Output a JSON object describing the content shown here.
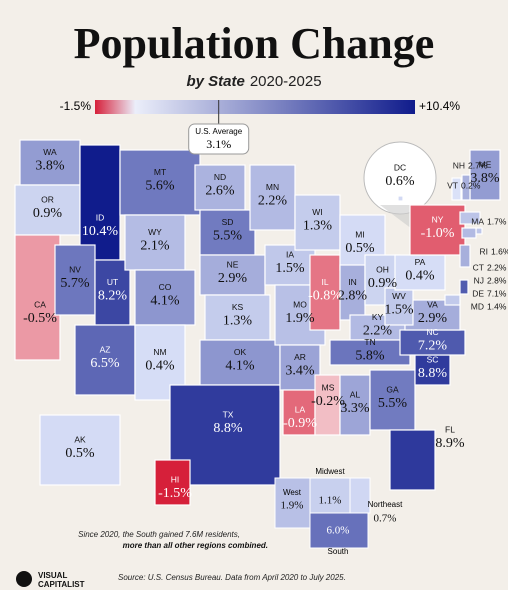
{
  "header": {
    "title": "Population Change",
    "subtitle": "by State",
    "period": "2020-2025"
  },
  "legend": {
    "min": {
      "value": -1.5,
      "label": "-1.5%"
    },
    "max": {
      "value": 10.4,
      "label": "+10.4%"
    }
  },
  "us_average": {
    "title": "U.S. Average",
    "value": 3.1,
    "label": "3.1%"
  },
  "states": [
    {
      "code": "WA",
      "value": 3.8,
      "label": "3.8%"
    },
    {
      "code": "OR",
      "value": 0.9,
      "label": "0.9%"
    },
    {
      "code": "CA",
      "value": -0.5,
      "label": "-0.5%"
    },
    {
      "code": "ID",
      "value": 10.4,
      "label": "10.4%"
    },
    {
      "code": "NV",
      "value": 5.7,
      "label": "5.7%"
    },
    {
      "code": "UT",
      "value": 8.2,
      "label": "8.2%"
    },
    {
      "code": "AZ",
      "value": 6.5,
      "label": "6.5%"
    },
    {
      "code": "MT",
      "value": 5.6,
      "label": "5.6%"
    },
    {
      "code": "WY",
      "value": 2.1,
      "label": "2.1%"
    },
    {
      "code": "CO",
      "value": 4.1,
      "label": "4.1%"
    },
    {
      "code": "NM",
      "value": 0.4,
      "label": "0.4%"
    },
    {
      "code": "ND",
      "value": 2.6,
      "label": "2.6%"
    },
    {
      "code": "SD",
      "value": 5.5,
      "label": "5.5%"
    },
    {
      "code": "NE",
      "value": 2.9,
      "label": "2.9%"
    },
    {
      "code": "KS",
      "value": 1.3,
      "label": "1.3%"
    },
    {
      "code": "OK",
      "value": 4.1,
      "label": "4.1%"
    },
    {
      "code": "TX",
      "value": 8.8,
      "label": "8.8%"
    },
    {
      "code": "MN",
      "value": 2.2,
      "label": "2.2%"
    },
    {
      "code": "IA",
      "value": 1.5,
      "label": "1.5%"
    },
    {
      "code": "MO",
      "value": 1.9,
      "label": "1.9%"
    },
    {
      "code": "AR",
      "value": 3.4,
      "label": "3.4%"
    },
    {
      "code": "LA",
      "value": -0.9,
      "label": "-0.9%"
    },
    {
      "code": "WI",
      "value": 1.3,
      "label": "1.3%"
    },
    {
      "code": "IL",
      "value": -0.8,
      "label": "-0.8%"
    },
    {
      "code": "MI",
      "value": 0.5,
      "label": "0.5%"
    },
    {
      "code": "IN",
      "value": 2.8,
      "label": "2.8%"
    },
    {
      "code": "OH",
      "value": 0.9,
      "label": "0.9%"
    },
    {
      "code": "KY",
      "value": 2.2,
      "label": "2.2%"
    },
    {
      "code": "TN",
      "value": 5.8,
      "label": "5.8%"
    },
    {
      "code": "MS",
      "value": -0.2,
      "label": "-0.2%"
    },
    {
      "code": "AL",
      "value": 3.3,
      "label": "3.3%"
    },
    {
      "code": "GA",
      "value": 5.5,
      "label": "5.5%"
    },
    {
      "code": "FL",
      "value": 8.9,
      "label": "8.9%"
    },
    {
      "code": "SC",
      "value": 8.8,
      "label": "8.8%"
    },
    {
      "code": "NC",
      "value": 7.2,
      "label": "7.2%"
    },
    {
      "code": "VA",
      "value": 2.9,
      "label": "2.9%"
    },
    {
      "code": "WV",
      "value": 1.5,
      "label": "1.5%"
    },
    {
      "code": "PA",
      "value": 0.4,
      "label": "0.4%"
    },
    {
      "code": "NY",
      "value": -1.0,
      "label": "-1.0%"
    },
    {
      "code": "ME",
      "value": 3.8,
      "label": "3.8%"
    },
    {
      "code": "NH",
      "value": 2.7,
      "label": "2.7%"
    },
    {
      "code": "VT",
      "value": 0.2,
      "label": "0.2%"
    },
    {
      "code": "MA",
      "value": 1.7,
      "label": "1.7%"
    },
    {
      "code": "RI",
      "value": 1.6,
      "label": "1.6%"
    },
    {
      "code": "CT",
      "value": 2.2,
      "label": "2.2%"
    },
    {
      "code": "NJ",
      "value": 2.8,
      "label": "2.8%"
    },
    {
      "code": "DE",
      "value": 7.1,
      "label": "7.1%"
    },
    {
      "code": "MD",
      "value": 1.4,
      "label": "1.4%"
    },
    {
      "code": "AK",
      "value": 0.5,
      "label": "0.5%"
    },
    {
      "code": "HI",
      "value": -1.5,
      "label": "-1.5%"
    },
    {
      "code": "DC",
      "value": 0.6,
      "label": "0.6%"
    }
  ],
  "regions": [
    {
      "name": "West",
      "value": 1.9,
      "label": "1.9%"
    },
    {
      "name": "Midwest",
      "value": 1.1,
      "label": "1.1%"
    },
    {
      "name": "South",
      "value": 6.0,
      "label": "6.0%"
    },
    {
      "name": "Northeast",
      "value": 0.7,
      "label": "0.7%"
    }
  ],
  "annotation": {
    "text": "Since 2020, the South gained 7.6M residents,",
    "emphasis": "more than all other regions combined."
  },
  "source": "Source: U.S. Census Bureau. Data from April 2020 to July 2025.",
  "brand": [
    "VISUAL",
    "CAPITALIST"
  ]
}
